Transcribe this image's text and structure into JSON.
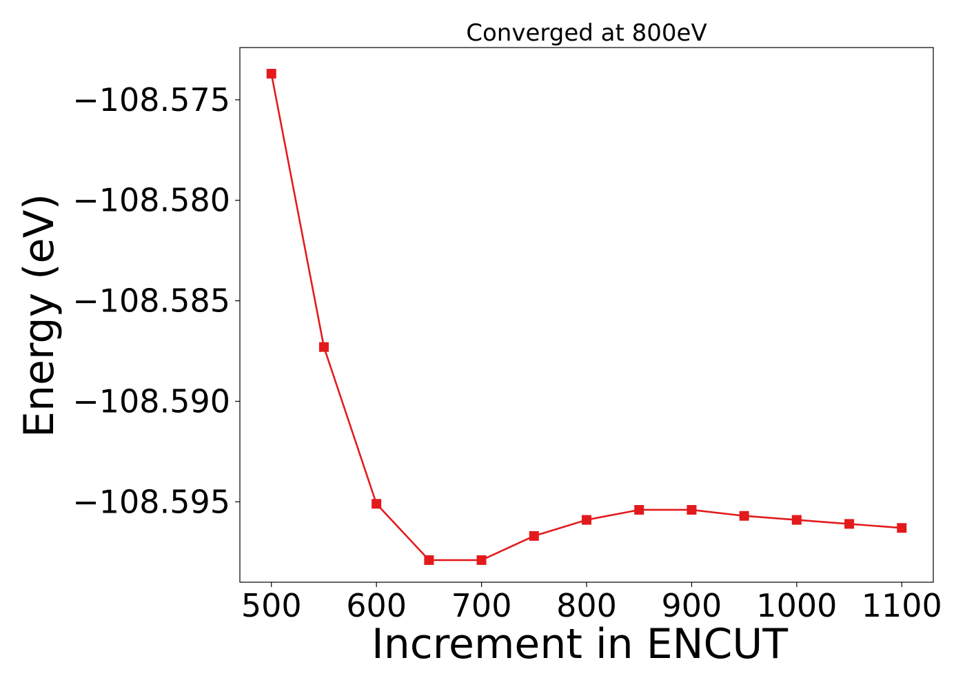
{
  "chart_data": {
    "type": "line",
    "title": "Converged at 800eV",
    "xlabel": "Increment in ENCUT",
    "ylabel": "Energy (eV)",
    "x": [
      500,
      550,
      600,
      650,
      700,
      750,
      800,
      850,
      900,
      950,
      1000,
      1050,
      1100
    ],
    "series": [
      {
        "values": [
          -108.5737,
          -108.5873,
          -108.5951,
          -108.5979,
          -108.5979,
          -108.5967,
          -108.5959,
          -108.5954,
          -108.5954,
          -108.5957,
          -108.5959,
          -108.5961,
          -108.5963
        ],
        "color": "#e31a1c",
        "marker": "square"
      }
    ],
    "xlim": [
      470,
      1130
    ],
    "ylim": [
      -108.599,
      -108.5724
    ],
    "xticks": [
      500,
      600,
      700,
      800,
      900,
      1000,
      1100
    ],
    "yticks": [
      -108.575,
      -108.58,
      -108.585,
      -108.59,
      -108.595
    ],
    "xtick_labels": [
      "500",
      "600",
      "700",
      "800",
      "900",
      "1000",
      "1100"
    ],
    "ytick_labels": [
      "−108.575",
      "−108.580",
      "−108.585",
      "−108.590",
      "−108.595"
    ],
    "grid": false,
    "legend": "none"
  }
}
